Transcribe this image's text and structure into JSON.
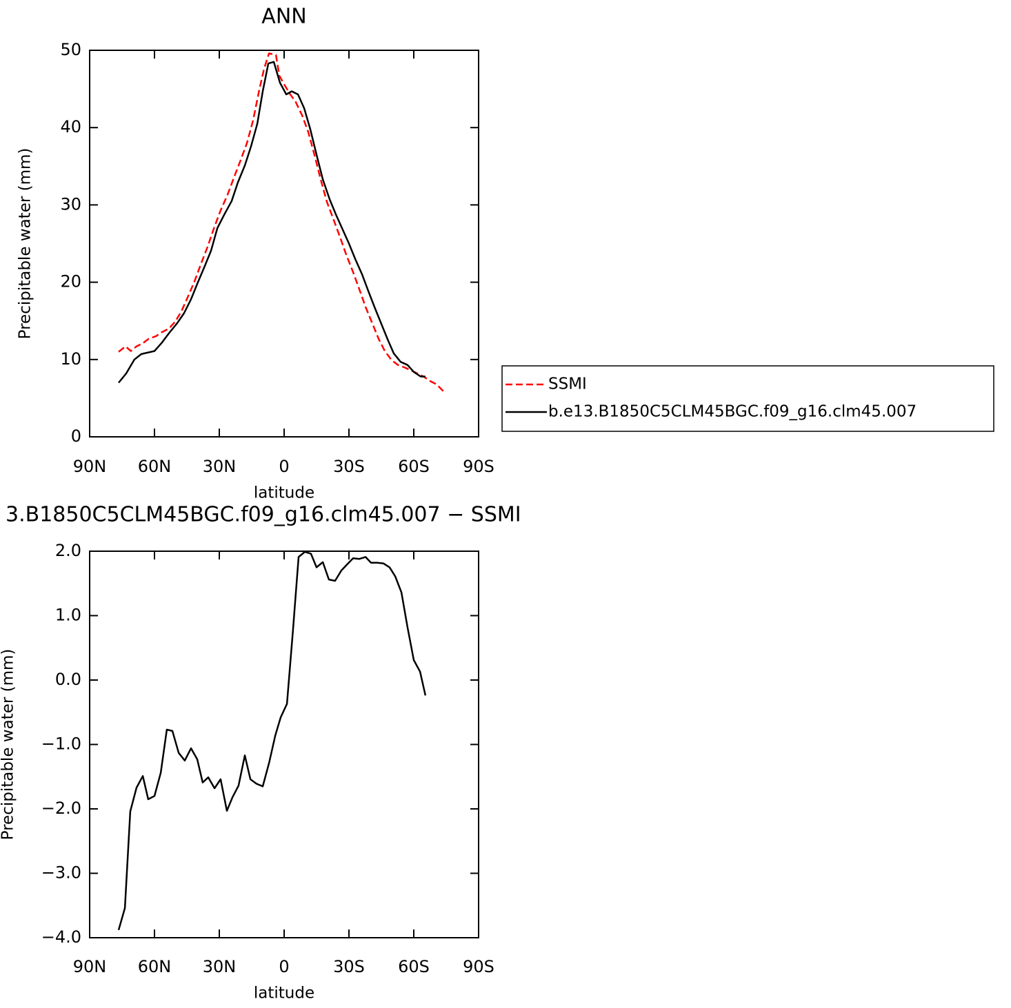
{
  "chart_data": [
    {
      "type": "line",
      "title": "ANN",
      "xlabel": "latitude",
      "ylabel": "Precipitable water (mm)",
      "xlim": [
        90,
        -90
      ],
      "xticks": [
        {
          "value": 90,
          "label": "90N"
        },
        {
          "value": 60,
          "label": "60N"
        },
        {
          "value": 30,
          "label": "30N"
        },
        {
          "value": 0,
          "label": "0"
        },
        {
          "value": -30,
          "label": "30S"
        },
        {
          "value": -60,
          "label": "60S"
        },
        {
          "value": -90,
          "label": "90S"
        }
      ],
      "ylim": [
        0,
        50
      ],
      "yticks": [
        0,
        10,
        20,
        30,
        40,
        50
      ],
      "legend": "right",
      "series": [
        {
          "name": "SSMI",
          "color": "#ff0000",
          "dash": true,
          "x": [
            76.6,
            73.4,
            70.9,
            68.3,
            65.4,
            62.6,
            59.4,
            56.8,
            53.3,
            50.4,
            47.6,
            44.4,
            41.5,
            38.3,
            35.4,
            32.6,
            29.4,
            26.2,
            23.0,
            20.1,
            17.2,
            14.4,
            11.5,
            9.3,
            7.0,
            3.8,
            2.2,
            0,
            -2.6,
            -5.4,
            -8.3,
            -11.2,
            -14.0,
            -16.9,
            -19.8,
            -23.0,
            -25.9,
            -28.7,
            -31.9,
            -34.8,
            -37.7,
            -40.9,
            -43.7,
            -46.6,
            -49.8,
            -52.7,
            -55.5,
            -58.7,
            -61.6,
            -64.5,
            -67.7,
            -70.5,
            -73.7
          ],
          "values": [
            11.0,
            11.7,
            11.1,
            11.7,
            12.1,
            12.7,
            13.0,
            13.5,
            14.0,
            14.9,
            16.2,
            18.2,
            20.1,
            22.5,
            24.6,
            26.9,
            29.3,
            31.3,
            33.7,
            35.8,
            38.0,
            40.9,
            44.9,
            47.6,
            49.6,
            49.4,
            46.7,
            45.6,
            44.4,
            43.3,
            41.6,
            39.4,
            36.5,
            33.3,
            30.4,
            28.0,
            25.8,
            23.6,
            21.3,
            19.1,
            16.8,
            14.6,
            12.7,
            11.1,
            9.9,
            9.3,
            9.0,
            8.6,
            8.2,
            7.8,
            7.2,
            6.8,
            5.9
          ]
        },
        {
          "name": "b.e13.B1850C5CLM45BGC.f09_g16.clm45.007",
          "color": "#000000",
          "dash": false,
          "x": [
            76.6,
            73.1,
            69.3,
            66.1,
            60.0,
            56.8,
            53.0,
            49.5,
            46.3,
            43.1,
            39.9,
            36.7,
            33.8,
            30.9,
            27.8,
            24.3,
            21.4,
            18.2,
            15.3,
            12.4,
            9.9,
            7.3,
            4.8,
            1.9,
            -1.0,
            -3.5,
            -6.4,
            -9.3,
            -12.1,
            -15.0,
            -17.9,
            -21.1,
            -23.9,
            -27.1,
            -30.0,
            -32.9,
            -36.1,
            -38.9,
            -41.8,
            -45.0,
            -47.9,
            -50.7,
            -53.9,
            -57.1,
            -60.0,
            -63.2,
            -65.4
          ],
          "values": [
            7.0,
            8.2,
            10.0,
            10.7,
            11.1,
            12.1,
            13.5,
            14.7,
            16.0,
            17.8,
            20.0,
            22.1,
            24.1,
            27.0,
            28.7,
            30.5,
            32.9,
            35.1,
            37.6,
            40.5,
            44.7,
            48.3,
            48.5,
            45.8,
            44.3,
            44.7,
            44.3,
            42.5,
            39.8,
            36.5,
            33.3,
            30.7,
            28.8,
            26.8,
            25.0,
            23.0,
            21.0,
            18.9,
            16.8,
            14.6,
            12.6,
            10.8,
            9.7,
            9.3,
            8.4,
            7.8,
            7.8
          ]
        }
      ]
    },
    {
      "type": "line",
      "title": "3.B1850C5CLM45BGC.f09_g16.clm45.007 − SSMI",
      "xlabel": "latitude",
      "ylabel": "Precipitable water (mm)",
      "xlim": [
        90,
        -90
      ],
      "xticks": [
        {
          "value": 90,
          "label": "90N"
        },
        {
          "value": 60,
          "label": "60N"
        },
        {
          "value": 30,
          "label": "30N"
        },
        {
          "value": 0,
          "label": "0"
        },
        {
          "value": -30,
          "label": "30S"
        },
        {
          "value": -60,
          "label": "60S"
        },
        {
          "value": -90,
          "label": "90S"
        }
      ],
      "ylim": [
        -4,
        2
      ],
      "yticks": [
        {
          "value": 2,
          "label": "2.0"
        },
        {
          "value": 1,
          "label": "1.0"
        },
        {
          "value": 0,
          "label": "0.0"
        },
        {
          "value": -1,
          "label": "−1.0"
        },
        {
          "value": -2,
          "label": "−2.0"
        },
        {
          "value": -3,
          "label": "−3.0"
        },
        {
          "value": -4,
          "label": "−4.0"
        }
      ],
      "series": [
        {
          "color": "#000000",
          "dash": false,
          "x": [
            76.6,
            73.7,
            71.2,
            68.3,
            65.4,
            62.9,
            60.0,
            57.1,
            54.3,
            51.7,
            48.8,
            46.0,
            43.1,
            40.2,
            37.7,
            35.1,
            32.2,
            29.4,
            26.5,
            23.9,
            21.1,
            18.2,
            15.6,
            12.8,
            9.9,
            7.0,
            4.1,
            1.6,
            -1.3,
            -4.1,
            -6.7,
            -9.6,
            -12.4,
            -15.0,
            -17.9,
            -20.7,
            -23.6,
            -26.5,
            -29.0,
            -31.9,
            -34.8,
            -37.7,
            -40.2,
            -43.1,
            -46.0,
            -48.8,
            -51.4,
            -54.3,
            -57.1,
            -60.0,
            -62.9,
            -65.4
          ],
          "values": [
            -3.88,
            -3.54,
            -2.04,
            -1.67,
            -1.49,
            -1.85,
            -1.8,
            -1.44,
            -0.77,
            -0.79,
            -1.13,
            -1.25,
            -1.06,
            -1.23,
            -1.59,
            -1.51,
            -1.68,
            -1.54,
            -2.03,
            -1.82,
            -1.64,
            -1.17,
            -1.54,
            -1.61,
            -1.65,
            -1.29,
            -0.86,
            -0.58,
            -0.37,
            0.77,
            1.91,
            1.99,
            1.96,
            1.75,
            1.83,
            1.56,
            1.54,
            1.7,
            1.79,
            1.89,
            1.88,
            1.91,
            1.82,
            1.82,
            1.81,
            1.75,
            1.61,
            1.36,
            0.82,
            0.31,
            0.13,
            -0.24
          ]
        }
      ]
    }
  ]
}
